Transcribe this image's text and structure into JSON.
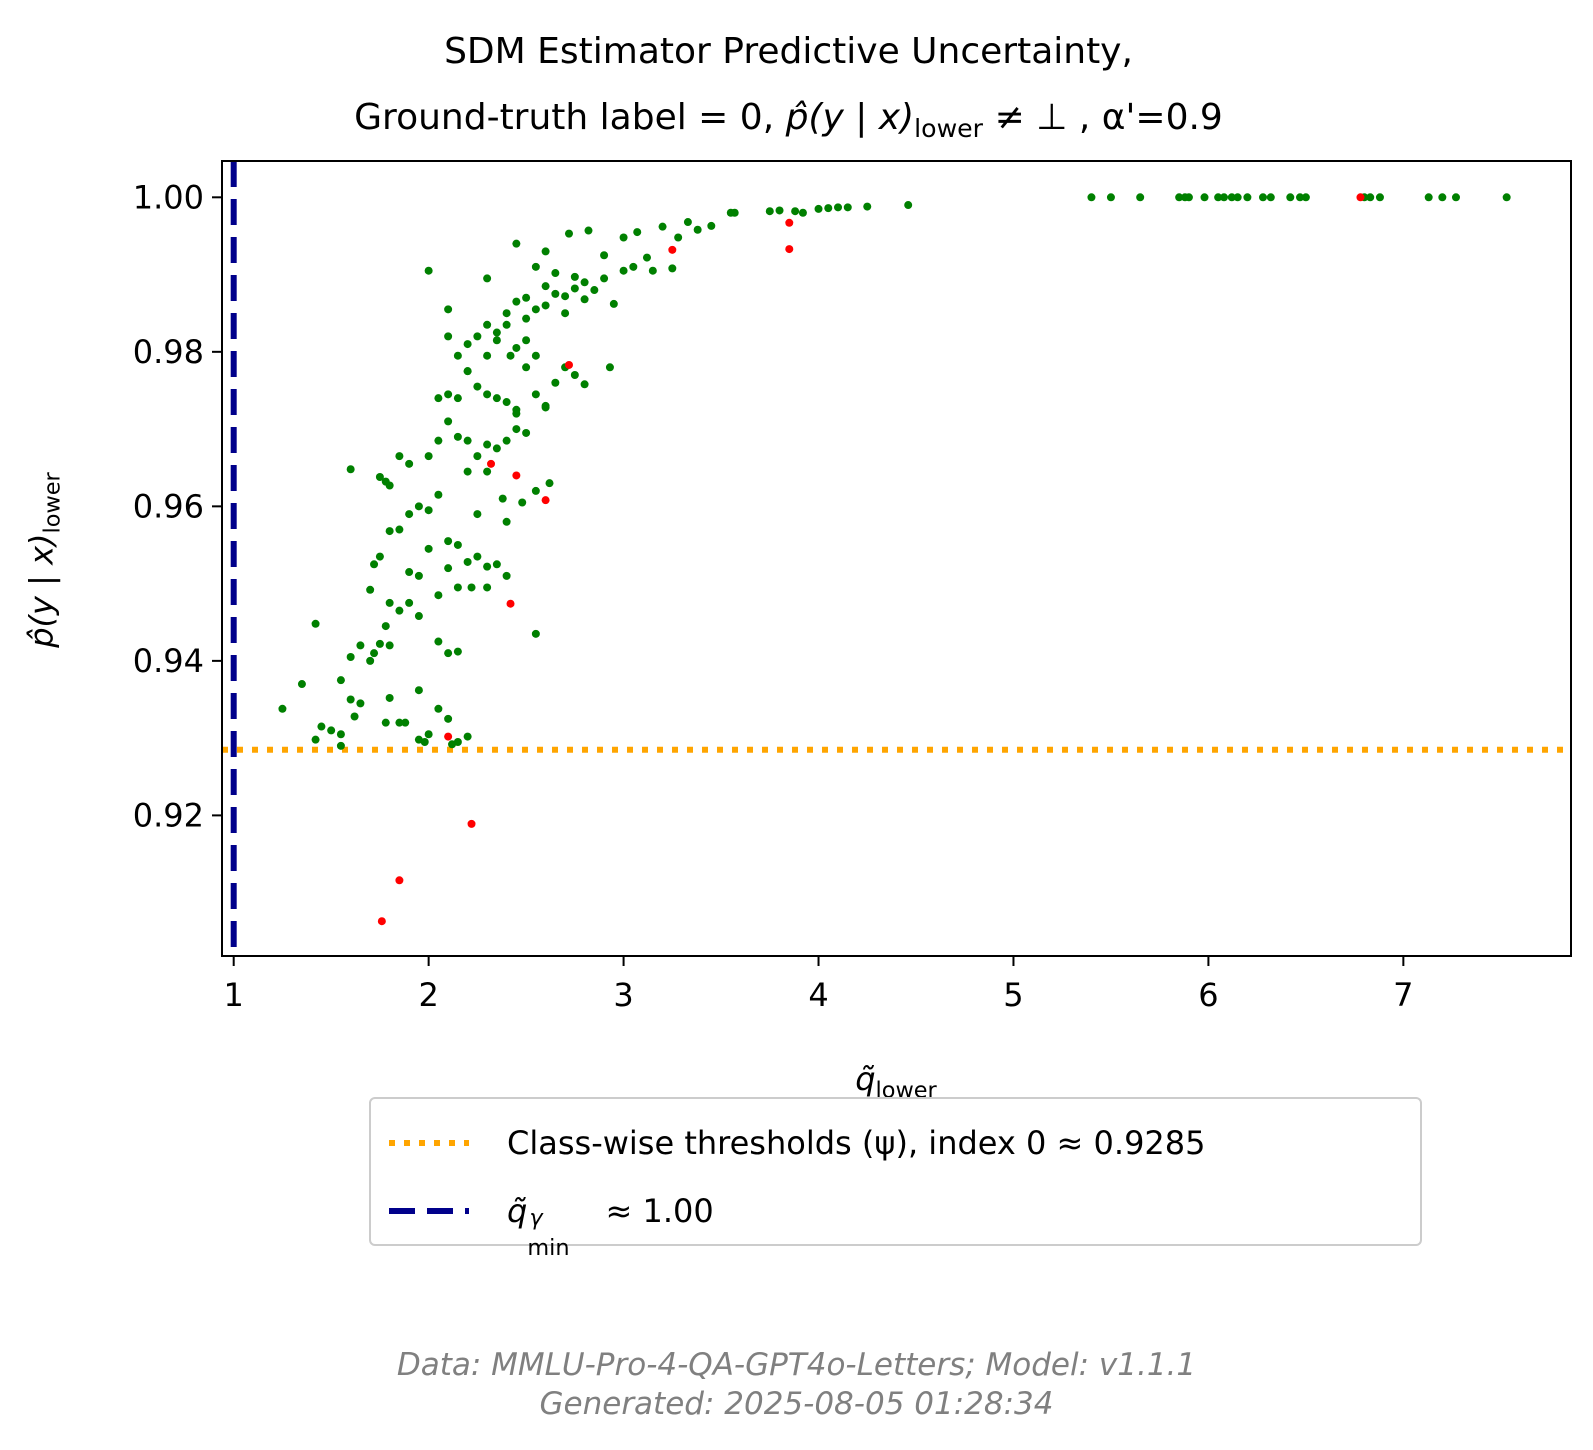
{
  "title": {
    "line1": "SDM Estimator Predictive Uncertainty,",
    "line2_prefix": "Ground-truth label = 0, ",
    "line2_math": "p̂(y | x)",
    "line2_math_sub": "lower",
    "line2_suffix": " ≠ ⊥ , α'=0.9"
  },
  "axes": {
    "xlabel": "q̃",
    "xlabel_sub": "lower",
    "ylabel": "p̂(y | x)",
    "ylabel_sub": "lower"
  },
  "legend": {
    "threshold_label": "Class-wise thresholds (ψ), index 0 ≈ 0.9285",
    "qmin_label_main": "q̃",
    "qmin_label_sup": "γ",
    "qmin_label_sub": "min",
    "qmin_label_tail": " ≈ 1.00"
  },
  "footer": {
    "line1": "Data: MMLU-Pro-4-QA-GPT4o-Letters; Model: v1.1.1",
    "line2": "Generated: 2025-08-05 01:28:34"
  },
  "colors": {
    "correct": "#008000",
    "incorrect": "#ff0000",
    "threshold": "#ffa500",
    "qmin": "#00008b"
  },
  "chart_data": {
    "type": "scatter",
    "xlim": [
      0.94,
      7.86
    ],
    "ylim": [
      0.9018,
      1.0047
    ],
    "xticks": [
      1,
      2,
      3,
      4,
      5,
      6,
      7
    ],
    "yticks": [
      0.92,
      0.94,
      0.96,
      0.98,
      1.0
    ],
    "ytick_labels": [
      "0.92",
      "0.94",
      "0.96",
      "0.98",
      "1.00"
    ],
    "grid": false,
    "legend_position": "below",
    "threshold_y": 0.9285,
    "qmin_x": 1.0,
    "series": [
      {
        "color_key": "correct",
        "points": [
          [
            2.0,
            0.9905
          ],
          [
            2.3,
            0.9895
          ],
          [
            2.45,
            0.994
          ],
          [
            2.6,
            0.993
          ],
          [
            2.72,
            0.9953
          ],
          [
            2.82,
            0.9957
          ],
          [
            2.9,
            0.9925
          ],
          [
            3.0,
            0.9948
          ],
          [
            3.07,
            0.9955
          ],
          [
            3.12,
            0.9922
          ],
          [
            3.2,
            0.9962
          ],
          [
            3.28,
            0.9948
          ],
          [
            3.33,
            0.9968
          ],
          [
            3.38,
            0.9958
          ],
          [
            3.45,
            0.9963
          ],
          [
            3.55,
            0.998
          ],
          [
            3.57,
            0.998
          ],
          [
            3.75,
            0.9982
          ],
          [
            3.8,
            0.9983
          ],
          [
            3.88,
            0.9982
          ],
          [
            3.92,
            0.998
          ],
          [
            4.0,
            0.9985
          ],
          [
            4.05,
            0.9986
          ],
          [
            4.1,
            0.9987
          ],
          [
            4.15,
            0.9987
          ],
          [
            4.25,
            0.9988
          ],
          [
            4.46,
            0.999
          ],
          [
            5.4,
            1.0
          ],
          [
            5.5,
            1.0
          ],
          [
            5.65,
            1.0
          ],
          [
            5.85,
            1.0
          ],
          [
            5.88,
            1.0
          ],
          [
            5.9,
            1.0
          ],
          [
            5.98,
            1.0
          ],
          [
            6.05,
            1.0
          ],
          [
            6.08,
            1.0
          ],
          [
            6.12,
            1.0
          ],
          [
            6.15,
            1.0
          ],
          [
            6.2,
            1.0
          ],
          [
            6.28,
            1.0
          ],
          [
            6.32,
            1.0
          ],
          [
            6.42,
            1.0
          ],
          [
            6.47,
            1.0
          ],
          [
            6.5,
            1.0
          ],
          [
            6.8,
            1.0
          ],
          [
            6.83,
            1.0
          ],
          [
            6.88,
            1.0
          ],
          [
            7.13,
            1.0
          ],
          [
            7.2,
            1.0
          ],
          [
            7.27,
            1.0
          ],
          [
            7.53,
            1.0
          ],
          [
            2.1,
            0.9855
          ],
          [
            2.2,
            0.981
          ],
          [
            2.25,
            0.982
          ],
          [
            2.3,
            0.9835
          ],
          [
            2.35,
            0.9825
          ],
          [
            2.4,
            0.985
          ],
          [
            2.45,
            0.9865
          ],
          [
            2.5,
            0.987
          ],
          [
            2.55,
            0.9855
          ],
          [
            2.6,
            0.9885
          ],
          [
            2.65,
            0.9875
          ],
          [
            2.7,
            0.9872
          ],
          [
            2.75,
            0.9882
          ],
          [
            2.8,
            0.989
          ],
          [
            2.85,
            0.988
          ],
          [
            2.9,
            0.9895
          ],
          [
            2.95,
            0.9862
          ],
          [
            3.0,
            0.9905
          ],
          [
            2.65,
            0.9902
          ],
          [
            2.55,
            0.991
          ],
          [
            2.75,
            0.9897
          ],
          [
            3.05,
            0.991
          ],
          [
            3.15,
            0.9905
          ],
          [
            3.25,
            0.9908
          ],
          [
            2.8,
            0.9868
          ],
          [
            2.7,
            0.985
          ],
          [
            2.5,
            0.9843
          ],
          [
            2.6,
            0.986
          ],
          [
            2.1,
            0.982
          ],
          [
            2.15,
            0.9795
          ],
          [
            2.2,
            0.9775
          ],
          [
            2.25,
            0.9755
          ],
          [
            2.3,
            0.9745
          ],
          [
            2.35,
            0.974
          ],
          [
            2.4,
            0.9735
          ],
          [
            2.45,
            0.9725
          ],
          [
            2.5,
            0.978
          ],
          [
            2.55,
            0.9795
          ],
          [
            2.6,
            0.973
          ],
          [
            2.65,
            0.976
          ],
          [
            2.7,
            0.978
          ],
          [
            2.75,
            0.977
          ],
          [
            2.8,
            0.9758
          ],
          [
            2.2,
            0.9775
          ],
          [
            2.3,
            0.9795
          ],
          [
            2.35,
            0.9815
          ],
          [
            2.4,
            0.9835
          ],
          [
            2.45,
            0.9805
          ],
          [
            2.5,
            0.9815
          ],
          [
            2.15,
            0.974
          ],
          [
            2.1,
            0.9745
          ],
          [
            2.05,
            0.974
          ],
          [
            2.45,
            0.972
          ],
          [
            2.55,
            0.9745
          ],
          [
            2.6,
            0.9728
          ],
          [
            2.42,
            0.9795
          ],
          [
            2.93,
            0.978
          ],
          [
            2.1,
            0.971
          ],
          [
            2.15,
            0.969
          ],
          [
            2.2,
            0.9685
          ],
          [
            2.25,
            0.9665
          ],
          [
            2.3,
            0.968
          ],
          [
            2.35,
            0.9675
          ],
          [
            2.4,
            0.9685
          ],
          [
            2.45,
            0.97
          ],
          [
            2.5,
            0.9695
          ],
          [
            2.05,
            0.9685
          ],
          [
            2.0,
            0.9665
          ],
          [
            2.3,
            0.9645
          ],
          [
            2.38,
            0.961
          ],
          [
            2.48,
            0.9605
          ],
          [
            2.55,
            0.962
          ],
          [
            2.62,
            0.963
          ],
          [
            1.9,
            0.9655
          ],
          [
            1.85,
            0.9665
          ],
          [
            1.6,
            0.9648
          ],
          [
            1.75,
            0.9638
          ],
          [
            1.78,
            0.9632
          ],
          [
            1.8,
            0.9627
          ],
          [
            2.2,
            0.9645
          ],
          [
            2.05,
            0.9615
          ],
          [
            2.25,
            0.959
          ],
          [
            2.4,
            0.958
          ],
          [
            1.95,
            0.96
          ],
          [
            1.9,
            0.959
          ],
          [
            2.0,
            0.9595
          ],
          [
            1.85,
            0.957
          ],
          [
            1.8,
            0.9568
          ],
          [
            2.1,
            0.9555
          ],
          [
            2.15,
            0.955
          ],
          [
            2.2,
            0.9528
          ],
          [
            2.25,
            0.9535
          ],
          [
            2.3,
            0.9522
          ],
          [
            2.35,
            0.9525
          ],
          [
            2.4,
            0.951
          ],
          [
            2.0,
            0.9545
          ],
          [
            1.95,
            0.951
          ],
          [
            1.9,
            0.9515
          ],
          [
            1.75,
            0.9535
          ],
          [
            1.72,
            0.9525
          ],
          [
            1.7,
            0.9492
          ],
          [
            1.8,
            0.9475
          ],
          [
            1.85,
            0.9465
          ],
          [
            1.9,
            0.9475
          ],
          [
            1.95,
            0.9458
          ],
          [
            2.05,
            0.9485
          ],
          [
            2.1,
            0.952
          ],
          [
            2.15,
            0.9495
          ],
          [
            2.22,
            0.9495
          ],
          [
            2.3,
            0.9495
          ],
          [
            1.42,
            0.9448
          ],
          [
            1.78,
            0.9445
          ],
          [
            1.75,
            0.9422
          ],
          [
            1.8,
            0.942
          ],
          [
            1.65,
            0.942
          ],
          [
            1.72,
            0.941
          ],
          [
            1.6,
            0.9405
          ],
          [
            1.7,
            0.94
          ],
          [
            2.05,
            0.9425
          ],
          [
            2.1,
            0.941
          ],
          [
            2.15,
            0.9412
          ],
          [
            1.35,
            0.937
          ],
          [
            1.55,
            0.9375
          ],
          [
            1.6,
            0.935
          ],
          [
            1.65,
            0.9345
          ],
          [
            1.8,
            0.9352
          ],
          [
            1.95,
            0.9362
          ],
          [
            1.25,
            0.9338
          ],
          [
            1.5,
            0.931
          ],
          [
            1.55,
            0.9305
          ],
          [
            1.45,
            0.9315
          ],
          [
            1.62,
            0.9328
          ],
          [
            1.78,
            0.932
          ],
          [
            1.85,
            0.932
          ],
          [
            1.88,
            0.932
          ],
          [
            2.0,
            0.9305
          ],
          [
            2.05,
            0.9338
          ],
          [
            2.1,
            0.9325
          ],
          [
            2.2,
            0.9302
          ],
          [
            2.15,
            0.9295
          ],
          [
            1.98,
            0.9295
          ],
          [
            1.95,
            0.9298
          ],
          [
            1.42,
            0.9298
          ],
          [
            1.55,
            0.929
          ],
          [
            2.12,
            0.9292
          ],
          [
            2.55,
            0.9435
          ]
        ]
      },
      {
        "color_key": "incorrect",
        "points": [
          [
            1.76,
            0.9063
          ],
          [
            1.85,
            0.9116
          ],
          [
            2.22,
            0.9189
          ],
          [
            2.1,
            0.9302
          ],
          [
            2.32,
            0.9655
          ],
          [
            2.42,
            0.9474
          ],
          [
            2.45,
            0.964
          ],
          [
            2.6,
            0.9608
          ],
          [
            2.72,
            0.9783
          ],
          [
            3.25,
            0.9932
          ],
          [
            3.85,
            0.9967
          ],
          [
            3.85,
            0.9933
          ],
          [
            6.78,
            1.0
          ]
        ]
      }
    ]
  }
}
